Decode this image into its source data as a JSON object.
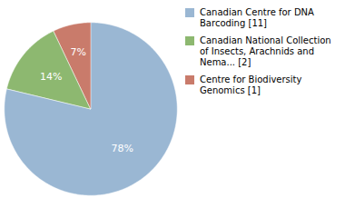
{
  "chart_data": {
    "type": "pie",
    "categories": [
      "Canadian Centre for DNA\nBarcoding [11]",
      "Canadian National Collection\nof Insects, Arachnids and\nNema... [2]",
      "Centre for Biodiversity\nGenomics [1]"
    ],
    "values": [
      78,
      14,
      7
    ],
    "value_labels": [
      "78%",
      "14%",
      "7%"
    ],
    "colors": [
      "#9ab7d3",
      "#8db870",
      "#c97b6b"
    ],
    "data_labels": true,
    "legend": "right"
  }
}
